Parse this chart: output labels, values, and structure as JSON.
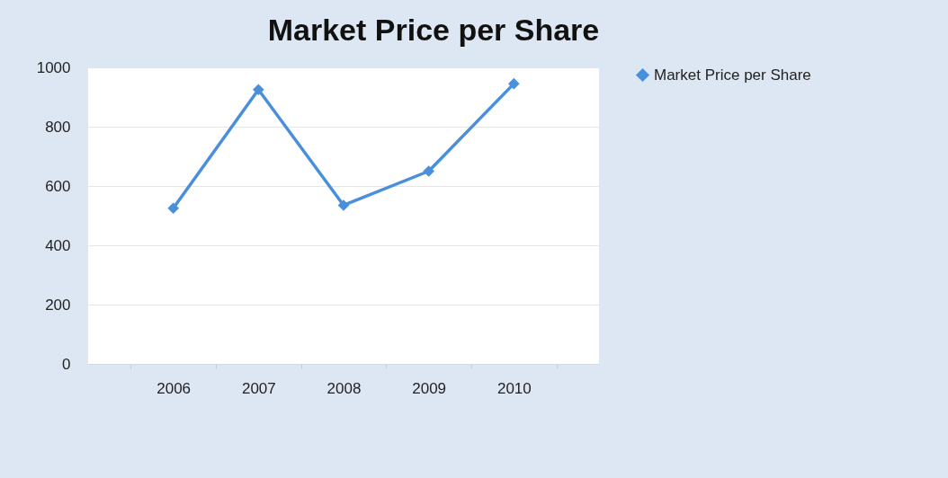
{
  "chart_data": {
    "type": "line",
    "title": "Market Price per Share",
    "categories": [
      "2006",
      "2007",
      "2008",
      "2009",
      "2010"
    ],
    "series": [
      {
        "name": "Market Price per Share",
        "color": "#4a8fdb",
        "values": [
          525,
          925,
          535,
          650,
          945
        ]
      }
    ],
    "ylim": [
      0,
      1000
    ],
    "yticks": [
      0,
      200,
      400,
      600,
      800,
      1000
    ],
    "grid": "y",
    "legend": "right",
    "marker": "diamond"
  }
}
